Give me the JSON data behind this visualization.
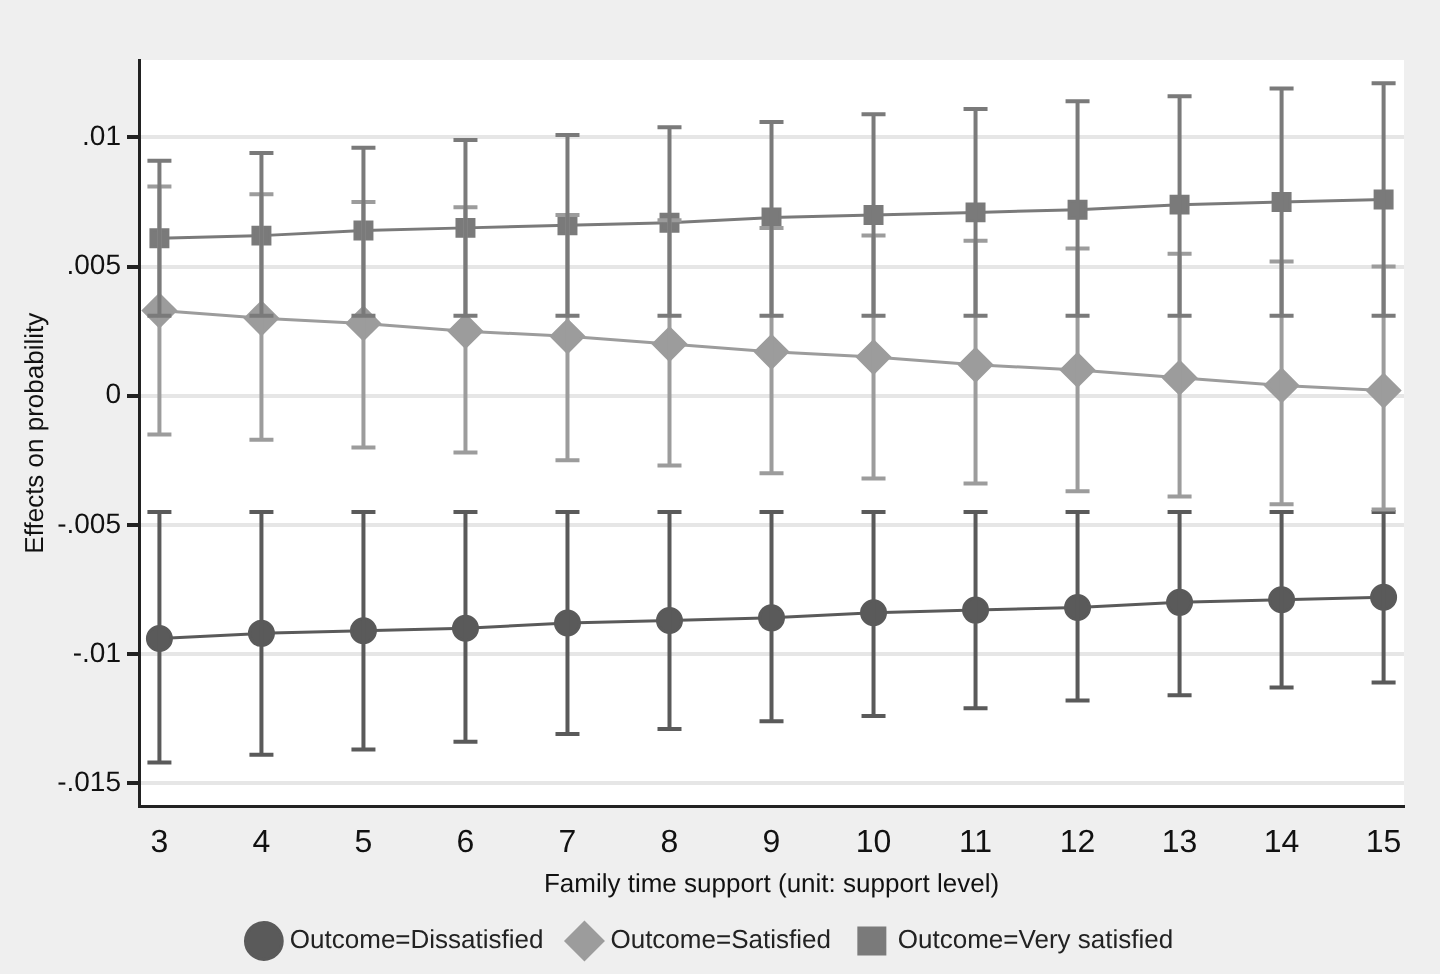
{
  "chart_data": {
    "type": "line",
    "xlabel": "Family time support (unit: support level)",
    "ylabel": "Effects on probability",
    "x": [
      3,
      4,
      5,
      6,
      7,
      8,
      9,
      10,
      11,
      12,
      13,
      14,
      15
    ],
    "xlim": [
      2.8,
      15.2
    ],
    "xticks": [
      3,
      4,
      5,
      6,
      7,
      8,
      9,
      10,
      11,
      12,
      13,
      14,
      15
    ],
    "ylim": [
      -0.0159,
      0.013
    ],
    "yticks": [
      {
        "value": -0.015,
        "label": "-.015"
      },
      {
        "value": -0.01,
        "label": "-.01"
      },
      {
        "value": -0.005,
        "label": "-.005"
      },
      0,
      {
        "value": 0.005,
        "label": ".005"
      },
      {
        "value": 0.01,
        "label": ".01"
      }
    ],
    "grid": "y",
    "legend": "bottom",
    "line_style": "solid",
    "series": [
      {
        "name": "Outcome=Dissatisfied",
        "color": "#5a5a5a",
        "marker": "circle",
        "values": [
          -0.0094,
          -0.0092,
          -0.0091,
          -0.009,
          -0.0088,
          -0.0087,
          -0.0086,
          -0.0084,
          -0.0083,
          -0.0082,
          -0.008,
          -0.0079,
          -0.0078
        ],
        "errors": [
          [
            -0.0142,
            -0.0045
          ],
          [
            -0.0139,
            -0.0045
          ],
          [
            -0.0137,
            -0.0045
          ],
          [
            -0.0134,
            -0.0045
          ],
          [
            -0.0131,
            -0.0045
          ],
          [
            -0.0129,
            -0.0045
          ],
          [
            -0.0126,
            -0.0045
          ],
          [
            -0.0124,
            -0.0045
          ],
          [
            -0.0121,
            -0.0045
          ],
          [
            -0.0118,
            -0.0045
          ],
          [
            -0.0116,
            -0.0045
          ],
          [
            -0.0113,
            -0.0045
          ],
          [
            -0.0111,
            -0.0045
          ]
        ]
      },
      {
        "name": "Outcome=Satisfied",
        "color": "#9c9c9c",
        "marker": "diamond",
        "values": [
          0.0033,
          0.003,
          0.0028,
          0.0025,
          0.0023,
          0.002,
          0.0017,
          0.0015,
          0.0012,
          0.001,
          0.0007,
          0.0004,
          0.0002
        ],
        "errors": [
          [
            -0.0015,
            0.0081
          ],
          [
            -0.0017,
            0.0078
          ],
          [
            -0.002,
            0.0075
          ],
          [
            -0.0022,
            0.0073
          ],
          [
            -0.0025,
            0.007
          ],
          [
            -0.0027,
            0.0068
          ],
          [
            -0.003,
            0.0065
          ],
          [
            -0.0032,
            0.0062
          ],
          [
            -0.0034,
            0.006
          ],
          [
            -0.0037,
            0.0057
          ],
          [
            -0.0039,
            0.0055
          ],
          [
            -0.0042,
            0.0052
          ],
          [
            -0.0044,
            0.005
          ]
        ]
      },
      {
        "name": "Outcome=Very satisfied",
        "color": "#7a7a7a",
        "marker": "square",
        "values": [
          0.0061,
          0.0062,
          0.0064,
          0.0065,
          0.0066,
          0.0067,
          0.0069,
          0.007,
          0.0071,
          0.0072,
          0.0074,
          0.0075,
          0.0076
        ],
        "errors": [
          [
            0.0031,
            0.0091
          ],
          [
            0.0031,
            0.0094
          ],
          [
            0.0031,
            0.0096
          ],
          [
            0.0031,
            0.0099
          ],
          [
            0.0031,
            0.0101
          ],
          [
            0.0031,
            0.0104
          ],
          [
            0.0031,
            0.0106
          ],
          [
            0.0031,
            0.0109
          ],
          [
            0.0031,
            0.0111
          ],
          [
            0.0031,
            0.0114
          ],
          [
            0.0031,
            0.0116
          ],
          [
            0.0031,
            0.0119
          ],
          [
            0.0031,
            0.0121
          ]
        ]
      }
    ]
  }
}
